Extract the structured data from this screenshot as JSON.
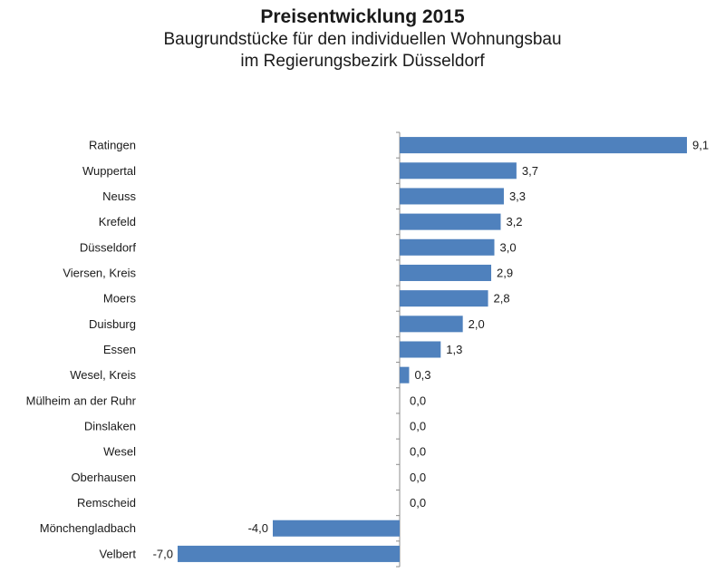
{
  "chart_data": {
    "type": "bar",
    "orientation": "horizontal",
    "title": "Preisentwicklung 2015",
    "subtitle": [
      "Baugrundstücke für den individuellen Wohnungsbau",
      "im Regierungsbezirk Düsseldorf"
    ],
    "categories": [
      "Ratingen",
      "Wuppertal",
      "Neuss",
      "Krefeld",
      "Düsseldorf",
      "Viersen, Kreis",
      "Moers",
      "Duisburg",
      "Essen",
      "Wesel, Kreis",
      "Mülheim an der Ruhr",
      "Dinslaken",
      "Wesel",
      "Oberhausen",
      "Remscheid",
      "Mönchengladbach",
      "Velbert"
    ],
    "values": [
      9.1,
      3.7,
      3.3,
      3.2,
      3.0,
      2.9,
      2.8,
      2.0,
      1.3,
      0.3,
      0.0,
      0.0,
      0.0,
      0.0,
      0.0,
      -4.0,
      -7.0
    ],
    "value_labels": [
      "9,1",
      "3,7",
      "3,3",
      "3,2",
      "3,0",
      "2,9",
      "2,8",
      "2,0",
      "1,3",
      "0,3",
      "0,0",
      "0,0",
      "0,0",
      "0,0",
      "0,0",
      "-4,0",
      "-7,0"
    ],
    "xlim": [
      -7.0,
      9.1
    ],
    "bar_color": "#4f81bd",
    "grid": false,
    "legend": "none"
  }
}
